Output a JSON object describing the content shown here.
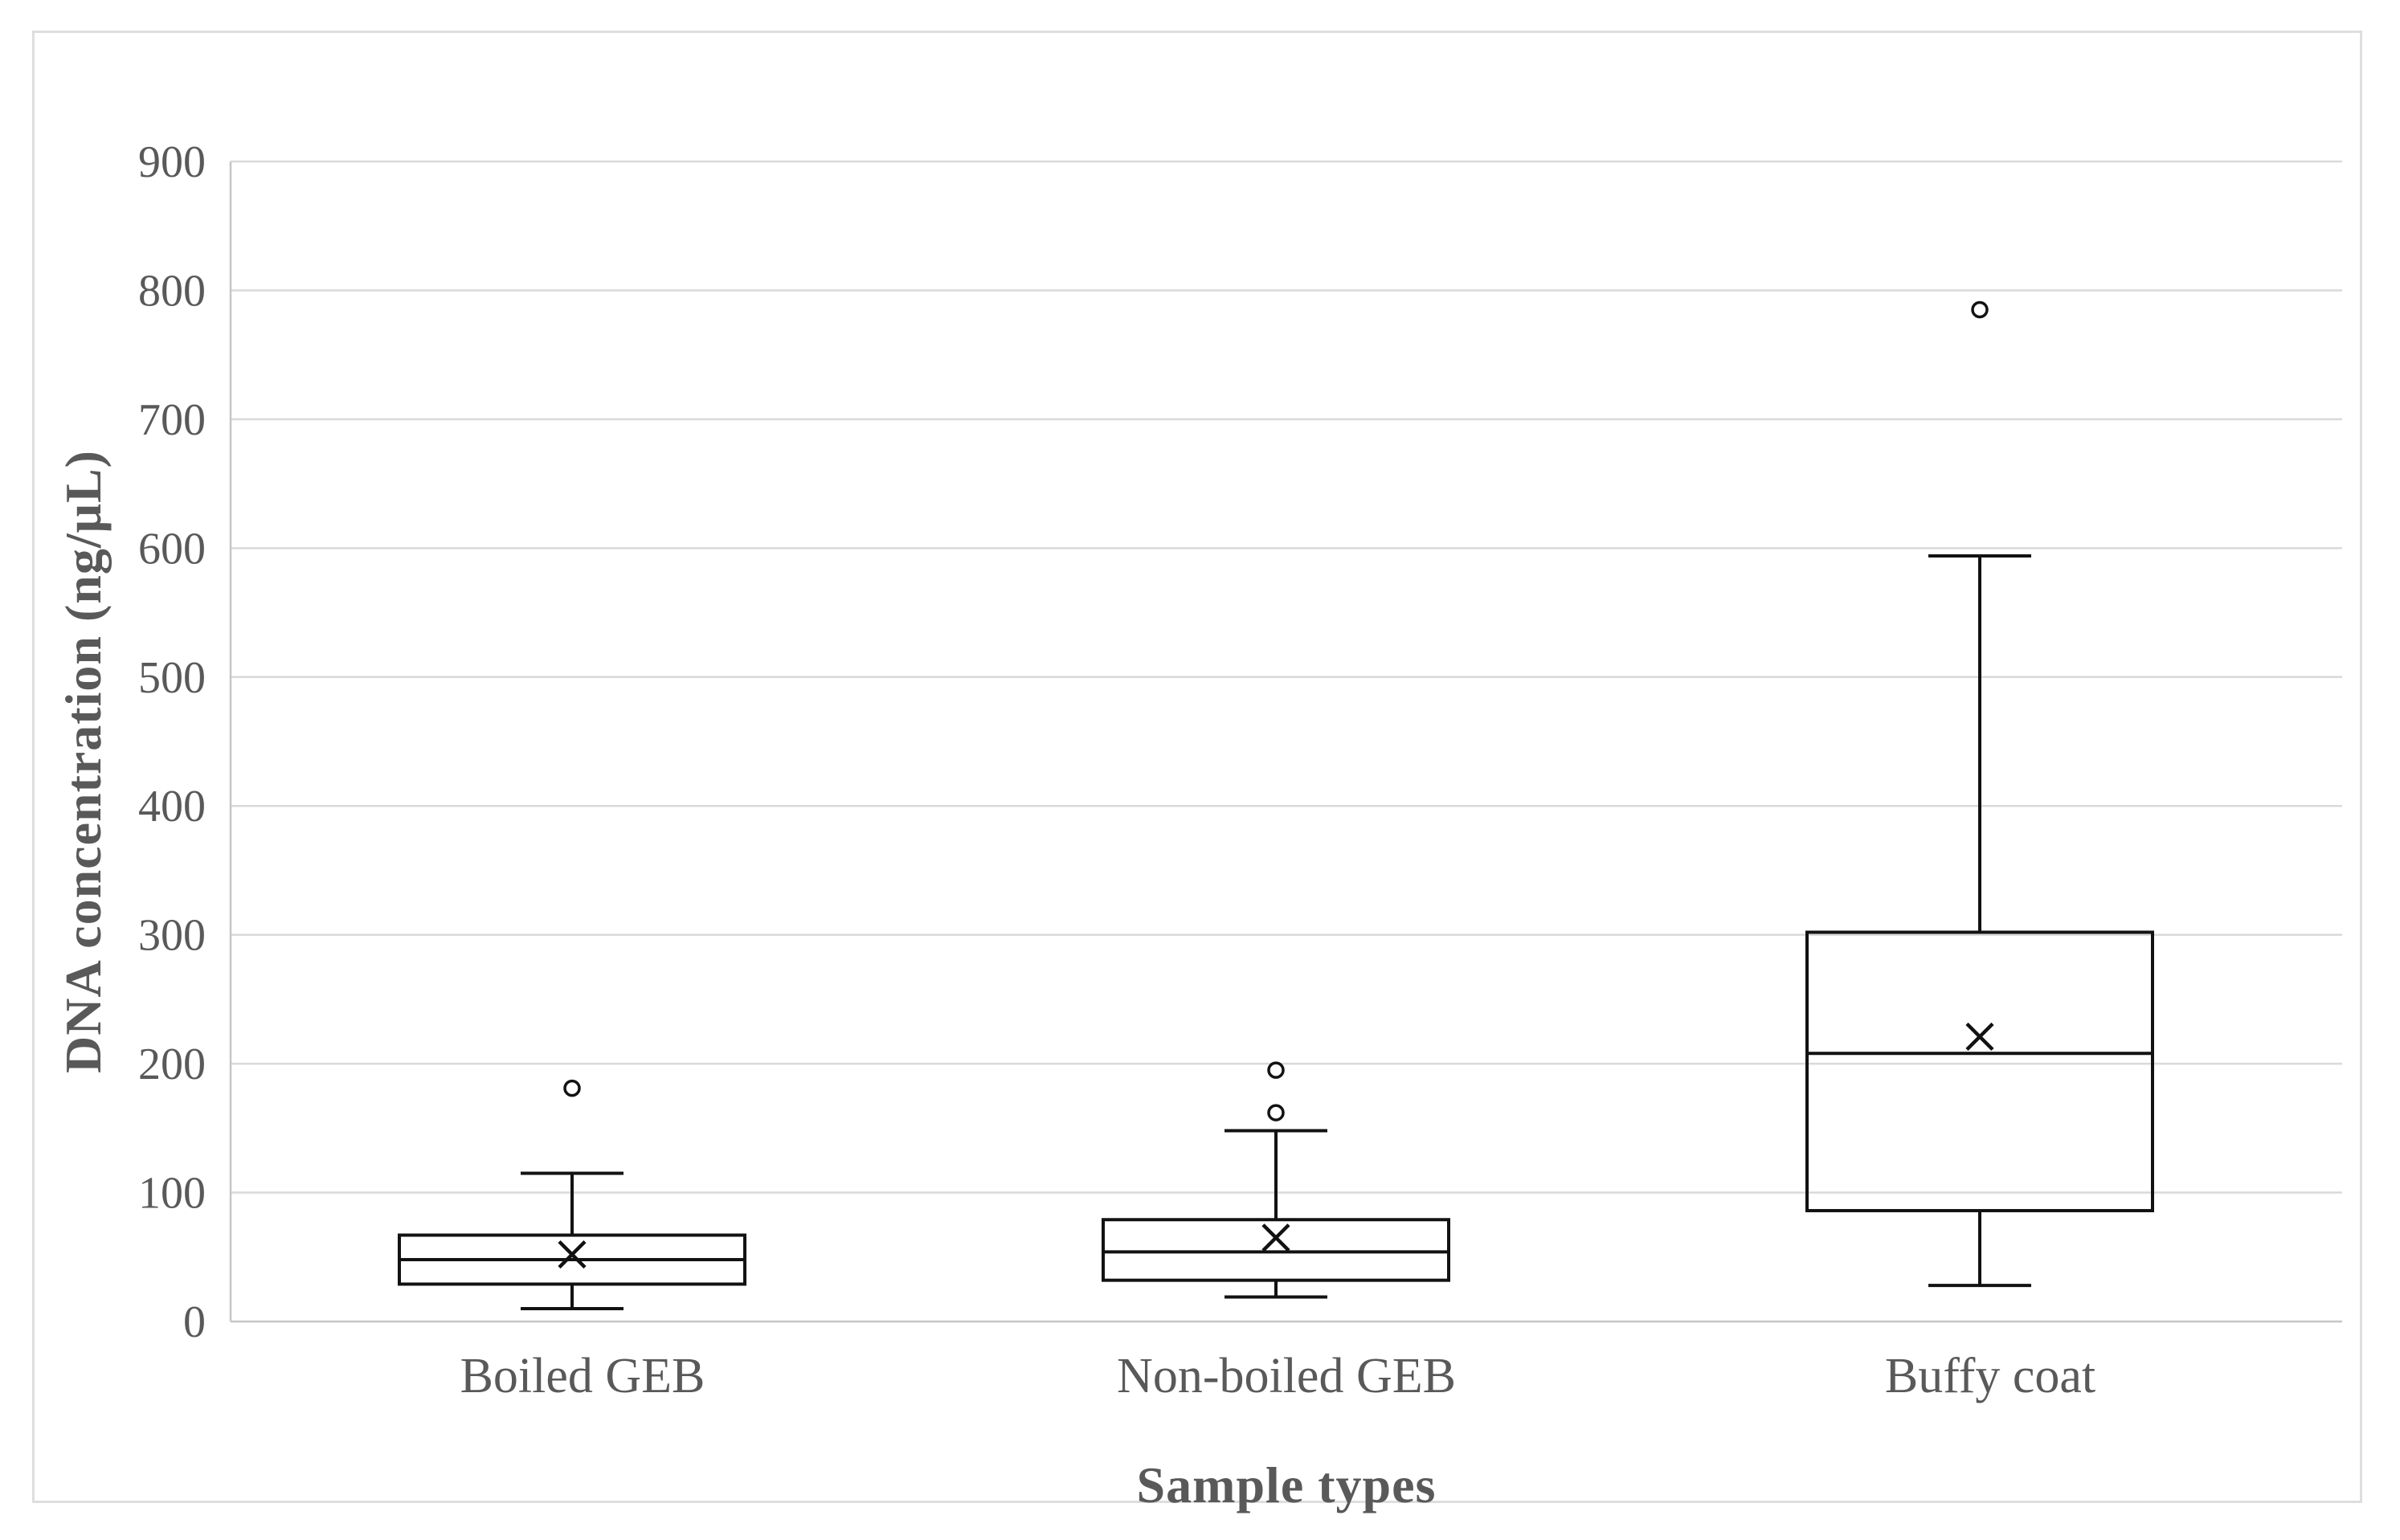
{
  "style": {
    "background": "#ffffff",
    "frame_color": "#dedede",
    "grid_color": "#d9d9d9",
    "axis_line_color": "#c6c6c6",
    "box_line_color": "#121212",
    "text_color": "#595959"
  },
  "chart_data": {
    "type": "boxplot",
    "title": "",
    "xlabel": "Sample types",
    "ylabel": "DNA concentration (ng/μL)",
    "ylim": [
      0,
      900
    ],
    "yticks": [
      0,
      100,
      200,
      300,
      400,
      500,
      600,
      700,
      800,
      900
    ],
    "grid": true,
    "legend": false,
    "categories": [
      "Boiled GEB",
      "Non-boiled GEB",
      "Buffy coat"
    ],
    "series": [
      {
        "name": "Boiled GEB",
        "whisker_low": 10,
        "q1": 29,
        "median": 48,
        "mean": 52,
        "q3": 67,
        "whisker_high": 115,
        "outliers": [
          181
        ]
      },
      {
        "name": "Non-boiled GEB",
        "whisker_low": 19,
        "q1": 32,
        "median": 54,
        "mean": 65,
        "q3": 79,
        "whisker_high": 148,
        "outliers": [
          162,
          195
        ]
      },
      {
        "name": "Buffy coat",
        "whisker_low": 28,
        "q1": 86,
        "median": 208,
        "mean": 221,
        "q3": 302,
        "whisker_high": 594,
        "outliers": [
          785
        ]
      }
    ],
    "mean_marker": "x-cross",
    "outlier_marker": "open-circle",
    "box_fill": "transparent"
  }
}
